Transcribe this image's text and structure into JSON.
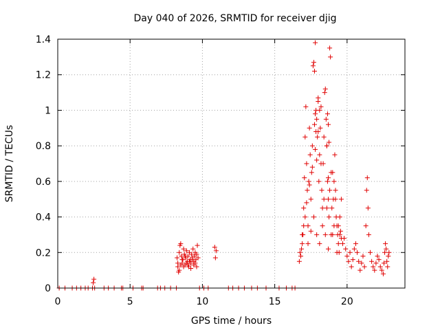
{
  "chart_data": {
    "type": "scatter",
    "title": "Day 040 of 2026, SRMTID for receiver djig",
    "xlabel": "GPS time / hours",
    "ylabel": "SRMTID / TECUs",
    "xlim": [
      0,
      24
    ],
    "ylim": [
      0,
      1.4
    ],
    "xticks": [
      0,
      5,
      10,
      15,
      20
    ],
    "xtick_labels": [
      "0",
      "5",
      "10",
      "15",
      "20"
    ],
    "yticks": [
      0,
      0.2,
      0.4,
      0.6,
      0.8,
      1.0,
      1.2,
      1.4
    ],
    "ytick_labels": [
      "0",
      "0.2",
      "0.4",
      "0.6",
      "0.8",
      "1",
      "1.2",
      "1.4"
    ],
    "grid": true,
    "marker": "+",
    "series": [
      {
        "name": "SRMTID",
        "color": "#e00000",
        "x": [
          0.1,
          0.5,
          1.0,
          1.3,
          1.6,
          1.9,
          2.1,
          2.4,
          2.45,
          2.5,
          2.55,
          3.2,
          3.5,
          3.9,
          4.4,
          4.5,
          5.2,
          5.8,
          5.9,
          6.9,
          7.1,
          7.4,
          7.8,
          8.2,
          8.25,
          8.3,
          8.35,
          8.4,
          8.45,
          8.5,
          8.55,
          8.6,
          8.65,
          8.7,
          8.75,
          8.8,
          8.85,
          8.9,
          8.95,
          9.0,
          9.05,
          9.1,
          9.15,
          9.2,
          9.25,
          9.3,
          9.35,
          9.4,
          9.45,
          9.5,
          9.55,
          9.6,
          9.65,
          9.7,
          9.8,
          10.1,
          10.4,
          10.85,
          10.9,
          10.95,
          11.8,
          12.1,
          12.5,
          12.9,
          13.4,
          13.8,
          14.4,
          15.3,
          15.8,
          16.2,
          16.4,
          16.7,
          16.75,
          16.8,
          16.85,
          16.9,
          16.95,
          17.0,
          17.05,
          17.1,
          17.15,
          17.2,
          17.25,
          17.3,
          17.35,
          17.4,
          17.45,
          17.5,
          17.55,
          17.6,
          17.65,
          17.7,
          17.75,
          17.8,
          17.85,
          17.9,
          17.95,
          18.0,
          18.05,
          18.1,
          18.15,
          18.2,
          18.25,
          18.3,
          18.35,
          18.4,
          18.45,
          18.5,
          18.55,
          18.6,
          18.65,
          18.7,
          18.75,
          18.8,
          18.85,
          18.9,
          18.95,
          19.0,
          19.05,
          19.1,
          19.15,
          19.2,
          19.25,
          19.3,
          19.35,
          19.4,
          19.45,
          19.5,
          19.55,
          19.6,
          19.7,
          19.8,
          19.9,
          20.0,
          20.1,
          20.2,
          20.3,
          20.4,
          20.5,
          20.6,
          20.7,
          20.8,
          20.9,
          21.0,
          21.1,
          21.2,
          21.3,
          21.35,
          21.4,
          21.45,
          21.5,
          21.6,
          21.7,
          21.8,
          21.9,
          22.0,
          22.1,
          22.2,
          22.3,
          22.4,
          22.5,
          22.55,
          22.6,
          22.65,
          22.7,
          22.75,
          22.8,
          22.85,
          22.9,
          17.0,
          17.2,
          17.4,
          17.6,
          17.8,
          18.0,
          18.2,
          18.4,
          18.6,
          18.8,
          19.0,
          19.2,
          19.4,
          19.6,
          17.75,
          17.8,
          17.85,
          18.65,
          18.7,
          18.75,
          17.9,
          18.0,
          18.1,
          18.6,
          18.7,
          16.9,
          17.1,
          17.3,
          17.5,
          17.7,
          17.9,
          18.1,
          18.3,
          18.5,
          18.7,
          18.9,
          19.1,
          19.3,
          19.5,
          8.3,
          8.4,
          8.5,
          8.6,
          8.7,
          8.8,
          8.9,
          9.0,
          9.1,
          9.2,
          9.3,
          9.4,
          9.5,
          9.6
        ],
        "y": [
          0,
          0,
          0,
          0,
          0,
          0,
          0,
          0,
          0.03,
          0.05,
          0,
          0,
          0,
          0,
          0,
          0,
          0,
          0,
          0,
          0,
          0,
          0,
          0,
          0,
          0.17,
          0.12,
          0.09,
          0.2,
          0.24,
          0.25,
          0.18,
          0.14,
          0.16,
          0.22,
          0.19,
          0.13,
          0.17,
          0.21,
          0.15,
          0.18,
          0.12,
          0.2,
          0.16,
          0.14,
          0.19,
          0.17,
          0.22,
          0.15,
          0.18,
          0.2,
          0.16,
          0.19,
          0.24,
          0.17,
          0,
          0,
          0,
          0.23,
          0.17,
          0.21,
          0,
          0,
          0,
          0,
          0,
          0,
          0,
          0,
          0,
          0,
          0,
          0.15,
          0.2,
          0.18,
          0.22,
          0.25,
          0.3,
          0.45,
          0.62,
          0.85,
          1.02,
          0.7,
          0.55,
          0.35,
          0.6,
          0.9,
          0.75,
          0.5,
          0.65,
          0.8,
          1.25,
          1.27,
          1.22,
          1.38,
          1.0,
          0.95,
          0.85,
          1.05,
          0.6,
          0.75,
          0.9,
          1.02,
          0.55,
          0.45,
          0.7,
          0.85,
          1.1,
          1.12,
          0.95,
          0.8,
          0.6,
          0.5,
          0.4,
          1.35,
          1.3,
          0.65,
          0.45,
          0.3,
          0.5,
          0.6,
          0.75,
          0.55,
          0.4,
          0.35,
          0.3,
          0.25,
          0.2,
          0.4,
          0.32,
          0.5,
          0.25,
          0.28,
          0.22,
          0.18,
          0.15,
          0.2,
          0.12,
          0.16,
          0.22,
          0.25,
          0.2,
          0.15,
          0.1,
          0.14,
          0.18,
          0.12,
          0.35,
          0.55,
          0.62,
          0.45,
          0.3,
          0.2,
          0.15,
          0.12,
          0.1,
          0.14,
          0.18,
          0.16,
          0.12,
          0.1,
          0.08,
          0.14,
          0.2,
          0.25,
          0.22,
          0.15,
          0.12,
          0.18,
          0.2,
          0.35,
          0.48,
          0.58,
          0.68,
          0.78,
          0.88,
          0.7,
          0.5,
          0.45,
          0.55,
          0.65,
          0.5,
          0.35,
          0.28,
          0.92,
          0.98,
          0.88,
          0.98,
          0.92,
          0.82,
          0.72,
          1.07,
          1.0,
          0.8,
          0.62,
          0.3,
          0.4,
          0.25,
          0.32,
          0.4,
          0.3,
          0.25,
          0.35,
          0.3,
          0.22,
          0.3,
          0.35,
          0.2,
          0.3,
          0.14,
          0.1,
          0.13,
          0.16,
          0.12,
          0.18,
          0.14,
          0.13,
          0.15,
          0.11,
          0.16,
          0.13,
          0.14,
          0.12
        ]
      }
    ]
  }
}
